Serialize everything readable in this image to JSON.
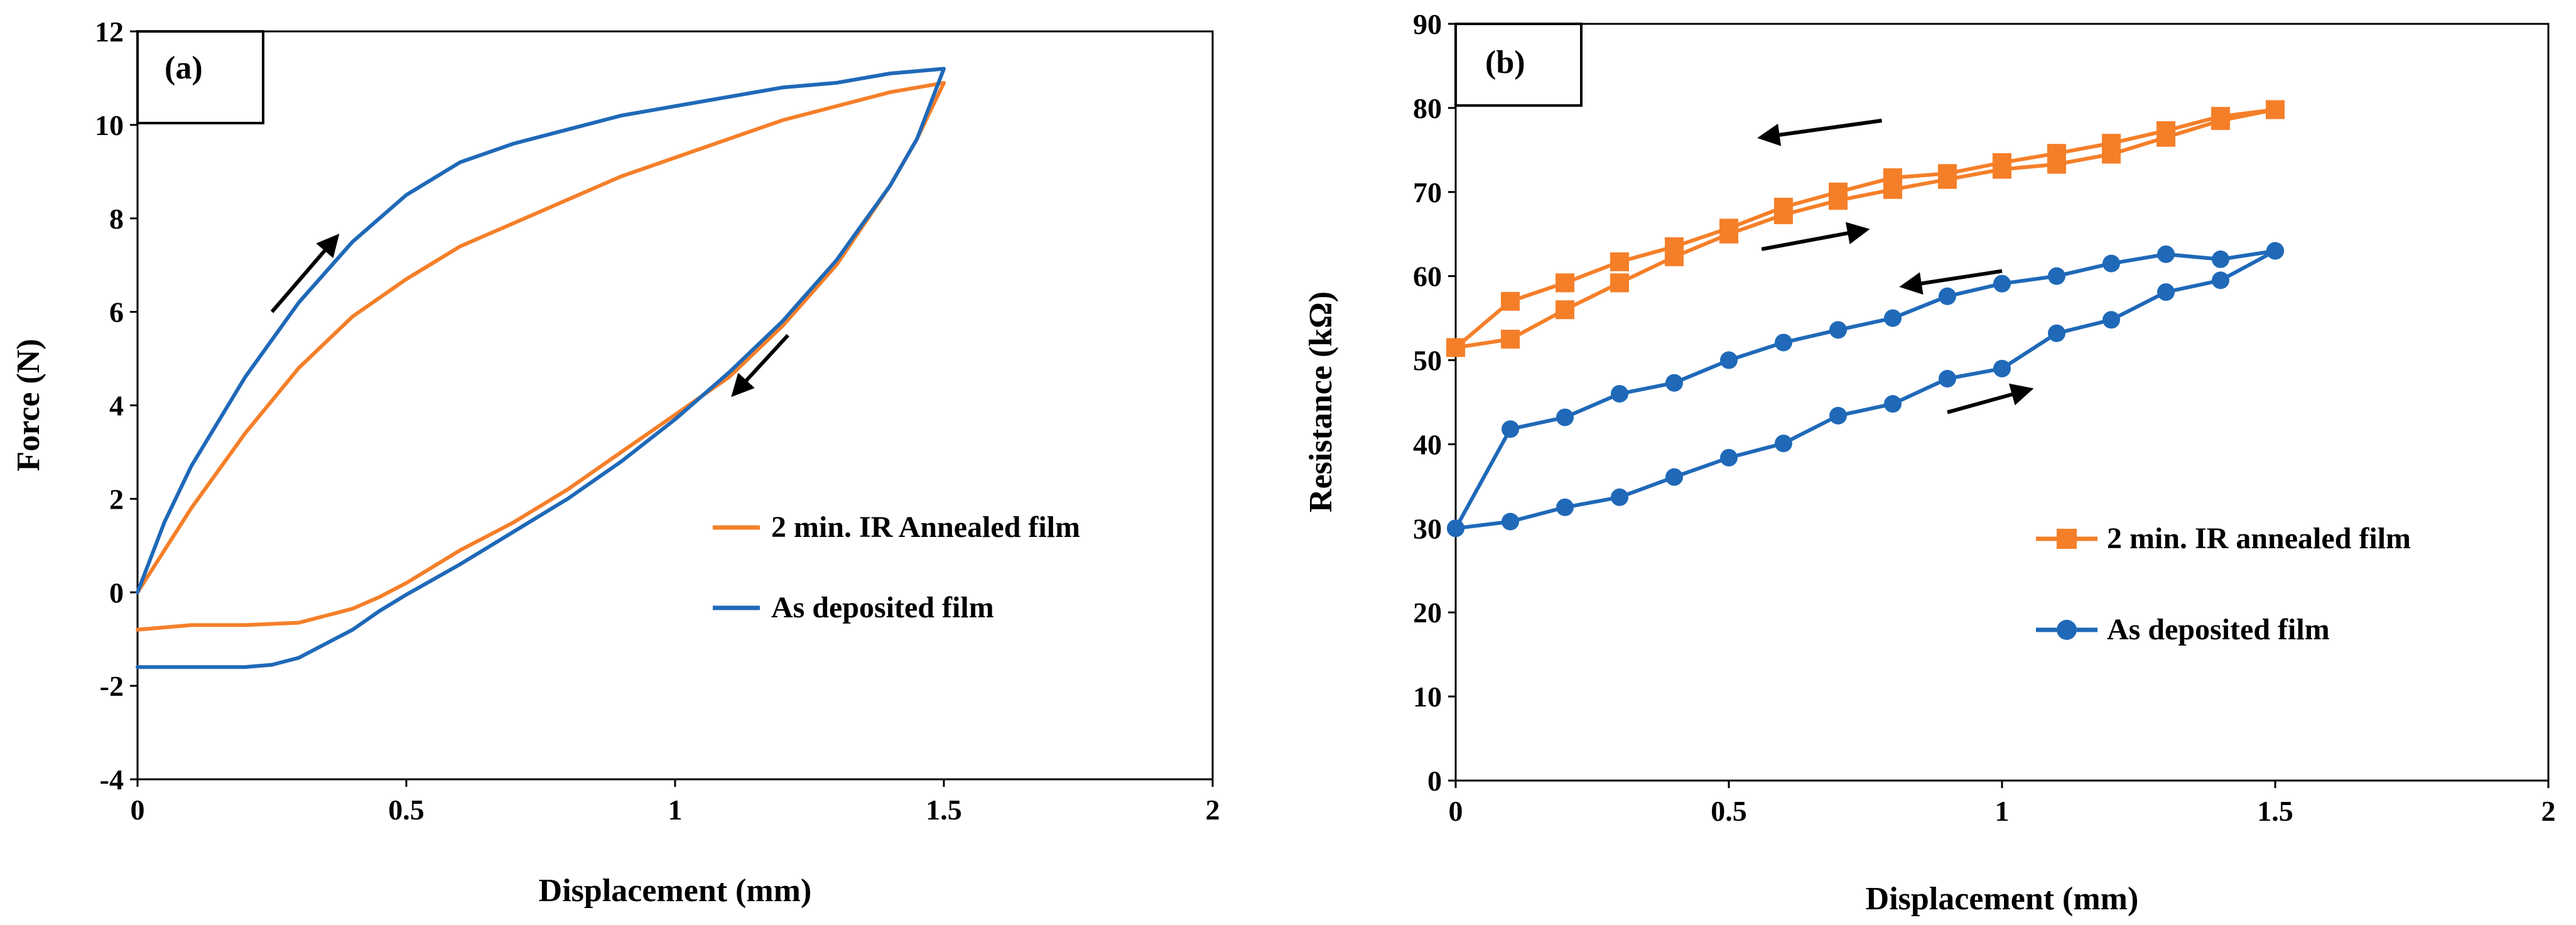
{
  "colors": {
    "orange": "#F57F29",
    "blue": "#1F69B8",
    "axis": "#000000",
    "background": "#FFFFFF"
  },
  "chart_data": [
    {
      "id": "a",
      "type": "line",
      "panel_label": "(a)",
      "xlabel": "Displacement (mm)",
      "ylabel": "Force (N)",
      "xlim": [
        0,
        2
      ],
      "ylim": [
        -4,
        12
      ],
      "xticks": [
        0,
        0.5,
        1,
        1.5,
        2
      ],
      "xtick_labels": [
        "0",
        "0.5",
        "1",
        "1.5",
        "2"
      ],
      "yticks": [
        -4,
        -2,
        0,
        2,
        4,
        6,
        8,
        10,
        12
      ],
      "ytick_labels": [
        "-4",
        "-2",
        "0",
        "2",
        "4",
        "6",
        "8",
        "10",
        "12"
      ],
      "grid": false,
      "legend_position": "right",
      "series": [
        {
          "name": "2 min. IR Annealed film",
          "color_key": "orange",
          "loading": {
            "x": [
              0,
              0.05,
              0.1,
              0.2,
              0.3,
              0.4,
              0.5,
              0.6,
              0.7,
              0.8,
              0.9,
              1.0,
              1.1,
              1.2,
              1.3,
              1.4,
              1.5
            ],
            "y": [
              0,
              0.9,
              1.8,
              3.4,
              4.8,
              5.9,
              6.7,
              7.4,
              7.9,
              8.4,
              8.9,
              9.3,
              9.7,
              10.1,
              10.4,
              10.7,
              10.9
            ]
          },
          "unloading": {
            "x": [
              1.5,
              1.45,
              1.4,
              1.3,
              1.2,
              1.1,
              1.0,
              0.9,
              0.8,
              0.7,
              0.6,
              0.5,
              0.45,
              0.4,
              0.35,
              0.3,
              0.2,
              0.1,
              0.05,
              0
            ],
            "y": [
              10.9,
              9.7,
              8.7,
              7.0,
              5.7,
              4.6,
              3.8,
              3.0,
              2.2,
              1.5,
              0.9,
              0.2,
              -0.1,
              -0.35,
              -0.5,
              -0.65,
              -0.7,
              -0.7,
              -0.75,
              -0.8
            ]
          }
        },
        {
          "name": "As deposited film",
          "color_key": "blue",
          "loading": {
            "x": [
              0,
              0.05,
              0.1,
              0.2,
              0.3,
              0.4,
              0.5,
              0.6,
              0.7,
              0.8,
              0.9,
              1.0,
              1.1,
              1.2,
              1.3,
              1.4,
              1.5
            ],
            "y": [
              0,
              1.5,
              2.7,
              4.6,
              6.2,
              7.5,
              8.5,
              9.2,
              9.6,
              9.9,
              10.2,
              10.4,
              10.6,
              10.8,
              10.9,
              11.1,
              11.2
            ]
          },
          "unloading": {
            "x": [
              1.5,
              1.45,
              1.4,
              1.3,
              1.2,
              1.1,
              1.0,
              0.9,
              0.8,
              0.7,
              0.6,
              0.5,
              0.45,
              0.4,
              0.35,
              0.3,
              0.25,
              0.2,
              0.1,
              0.05,
              0
            ],
            "y": [
              11.2,
              9.7,
              8.7,
              7.1,
              5.8,
              4.7,
              3.7,
              2.8,
              2.0,
              1.3,
              0.6,
              -0.05,
              -0.4,
              -0.8,
              -1.1,
              -1.4,
              -1.55,
              -1.6,
              -1.6,
              -1.6,
              -1.6
            ]
          }
        }
      ],
      "annotations": [
        {
          "type": "arrow",
          "from": [
            0.25,
            6.0
          ],
          "to": [
            0.37,
            7.6
          ]
        },
        {
          "type": "arrow",
          "from": [
            1.21,
            5.5
          ],
          "to": [
            1.11,
            4.25
          ]
        }
      ]
    },
    {
      "id": "b",
      "type": "line",
      "panel_label": "(b)",
      "xlabel": "Displacement (mm)",
      "ylabel": "Resistance (kΩ)",
      "xlim": [
        0,
        2
      ],
      "ylim": [
        0,
        90
      ],
      "xticks": [
        0,
        0.5,
        1,
        1.5,
        2
      ],
      "xtick_labels": [
        "0",
        "0.5",
        "1",
        "1.5",
        "2"
      ],
      "yticks": [
        0,
        10,
        20,
        30,
        40,
        50,
        60,
        70,
        80,
        90
      ],
      "ytick_labels": [
        "0",
        "10",
        "20",
        "30",
        "40",
        "50",
        "60",
        "70",
        "80",
        "90"
      ],
      "grid": false,
      "legend_position": "right",
      "series": [
        {
          "name": "2 min. IR annealed film",
          "color_key": "orange",
          "marker": "square",
          "loading": {
            "x": [
              0,
              0.1,
              0.2,
              0.3,
              0.4,
              0.5,
              0.6,
              0.7,
              0.8,
              0.9,
              1.0,
              1.1,
              1.2,
              1.3,
              1.4,
              1.5
            ],
            "y": [
              51.5,
              52.5,
              56,
              59.2,
              62.3,
              65,
              67.3,
              69,
              70.3,
              71.5,
              72.7,
              73.3,
              74.5,
              76.5,
              78.5,
              79.8
            ]
          },
          "unloading": {
            "x": [
              1.5,
              1.4,
              1.3,
              1.2,
              1.1,
              1.0,
              0.9,
              0.8,
              0.7,
              0.6,
              0.5,
              0.4,
              0.3,
              0.2,
              0.1,
              0
            ],
            "y": [
              79.8,
              79,
              77.3,
              75.8,
              74.6,
              73.5,
              72.2,
              71.7,
              70,
              68.2,
              65.7,
              63.5,
              61.7,
              59.2,
              57,
              51.5
            ]
          }
        },
        {
          "name": "As deposited film",
          "color_key": "blue",
          "marker": "circle",
          "loading": {
            "x": [
              0,
              0.1,
              0.2,
              0.3,
              0.4,
              0.5,
              0.6,
              0.7,
              0.8,
              0.9,
              1.0,
              1.1,
              1.2,
              1.3,
              1.4,
              1.5
            ],
            "y": [
              30,
              30.8,
              32.5,
              33.7,
              36.1,
              38.4,
              40.1,
              43.4,
              44.8,
              47.8,
              49,
              53.2,
              54.8,
              58.1,
              59.5,
              63
            ]
          },
          "unloading": {
            "x": [
              1.5,
              1.4,
              1.3,
              1.2,
              1.1,
              1.0,
              0.9,
              0.8,
              0.7,
              0.6,
              0.5,
              0.4,
              0.3,
              0.2,
              0.1,
              0
            ],
            "y": [
              63,
              62,
              62.6,
              61.5,
              60,
              59.1,
              57.6,
              55,
              53.6,
              52.1,
              50,
              47.3,
              46,
              43.2,
              41.8,
              30
            ]
          }
        }
      ],
      "annotations": [
        {
          "type": "arrow",
          "from": [
            0.78,
            78.5
          ],
          "to": [
            0.56,
            76.5
          ]
        },
        {
          "type": "arrow",
          "from": [
            0.56,
            63.2
          ],
          "to": [
            0.75,
            65.5
          ]
        },
        {
          "type": "arrow",
          "from": [
            1.0,
            60.6
          ],
          "to": [
            0.82,
            58.8
          ]
        },
        {
          "type": "arrow",
          "from": [
            0.9,
            43.8
          ],
          "to": [
            1.05,
            46.5
          ]
        }
      ]
    }
  ]
}
